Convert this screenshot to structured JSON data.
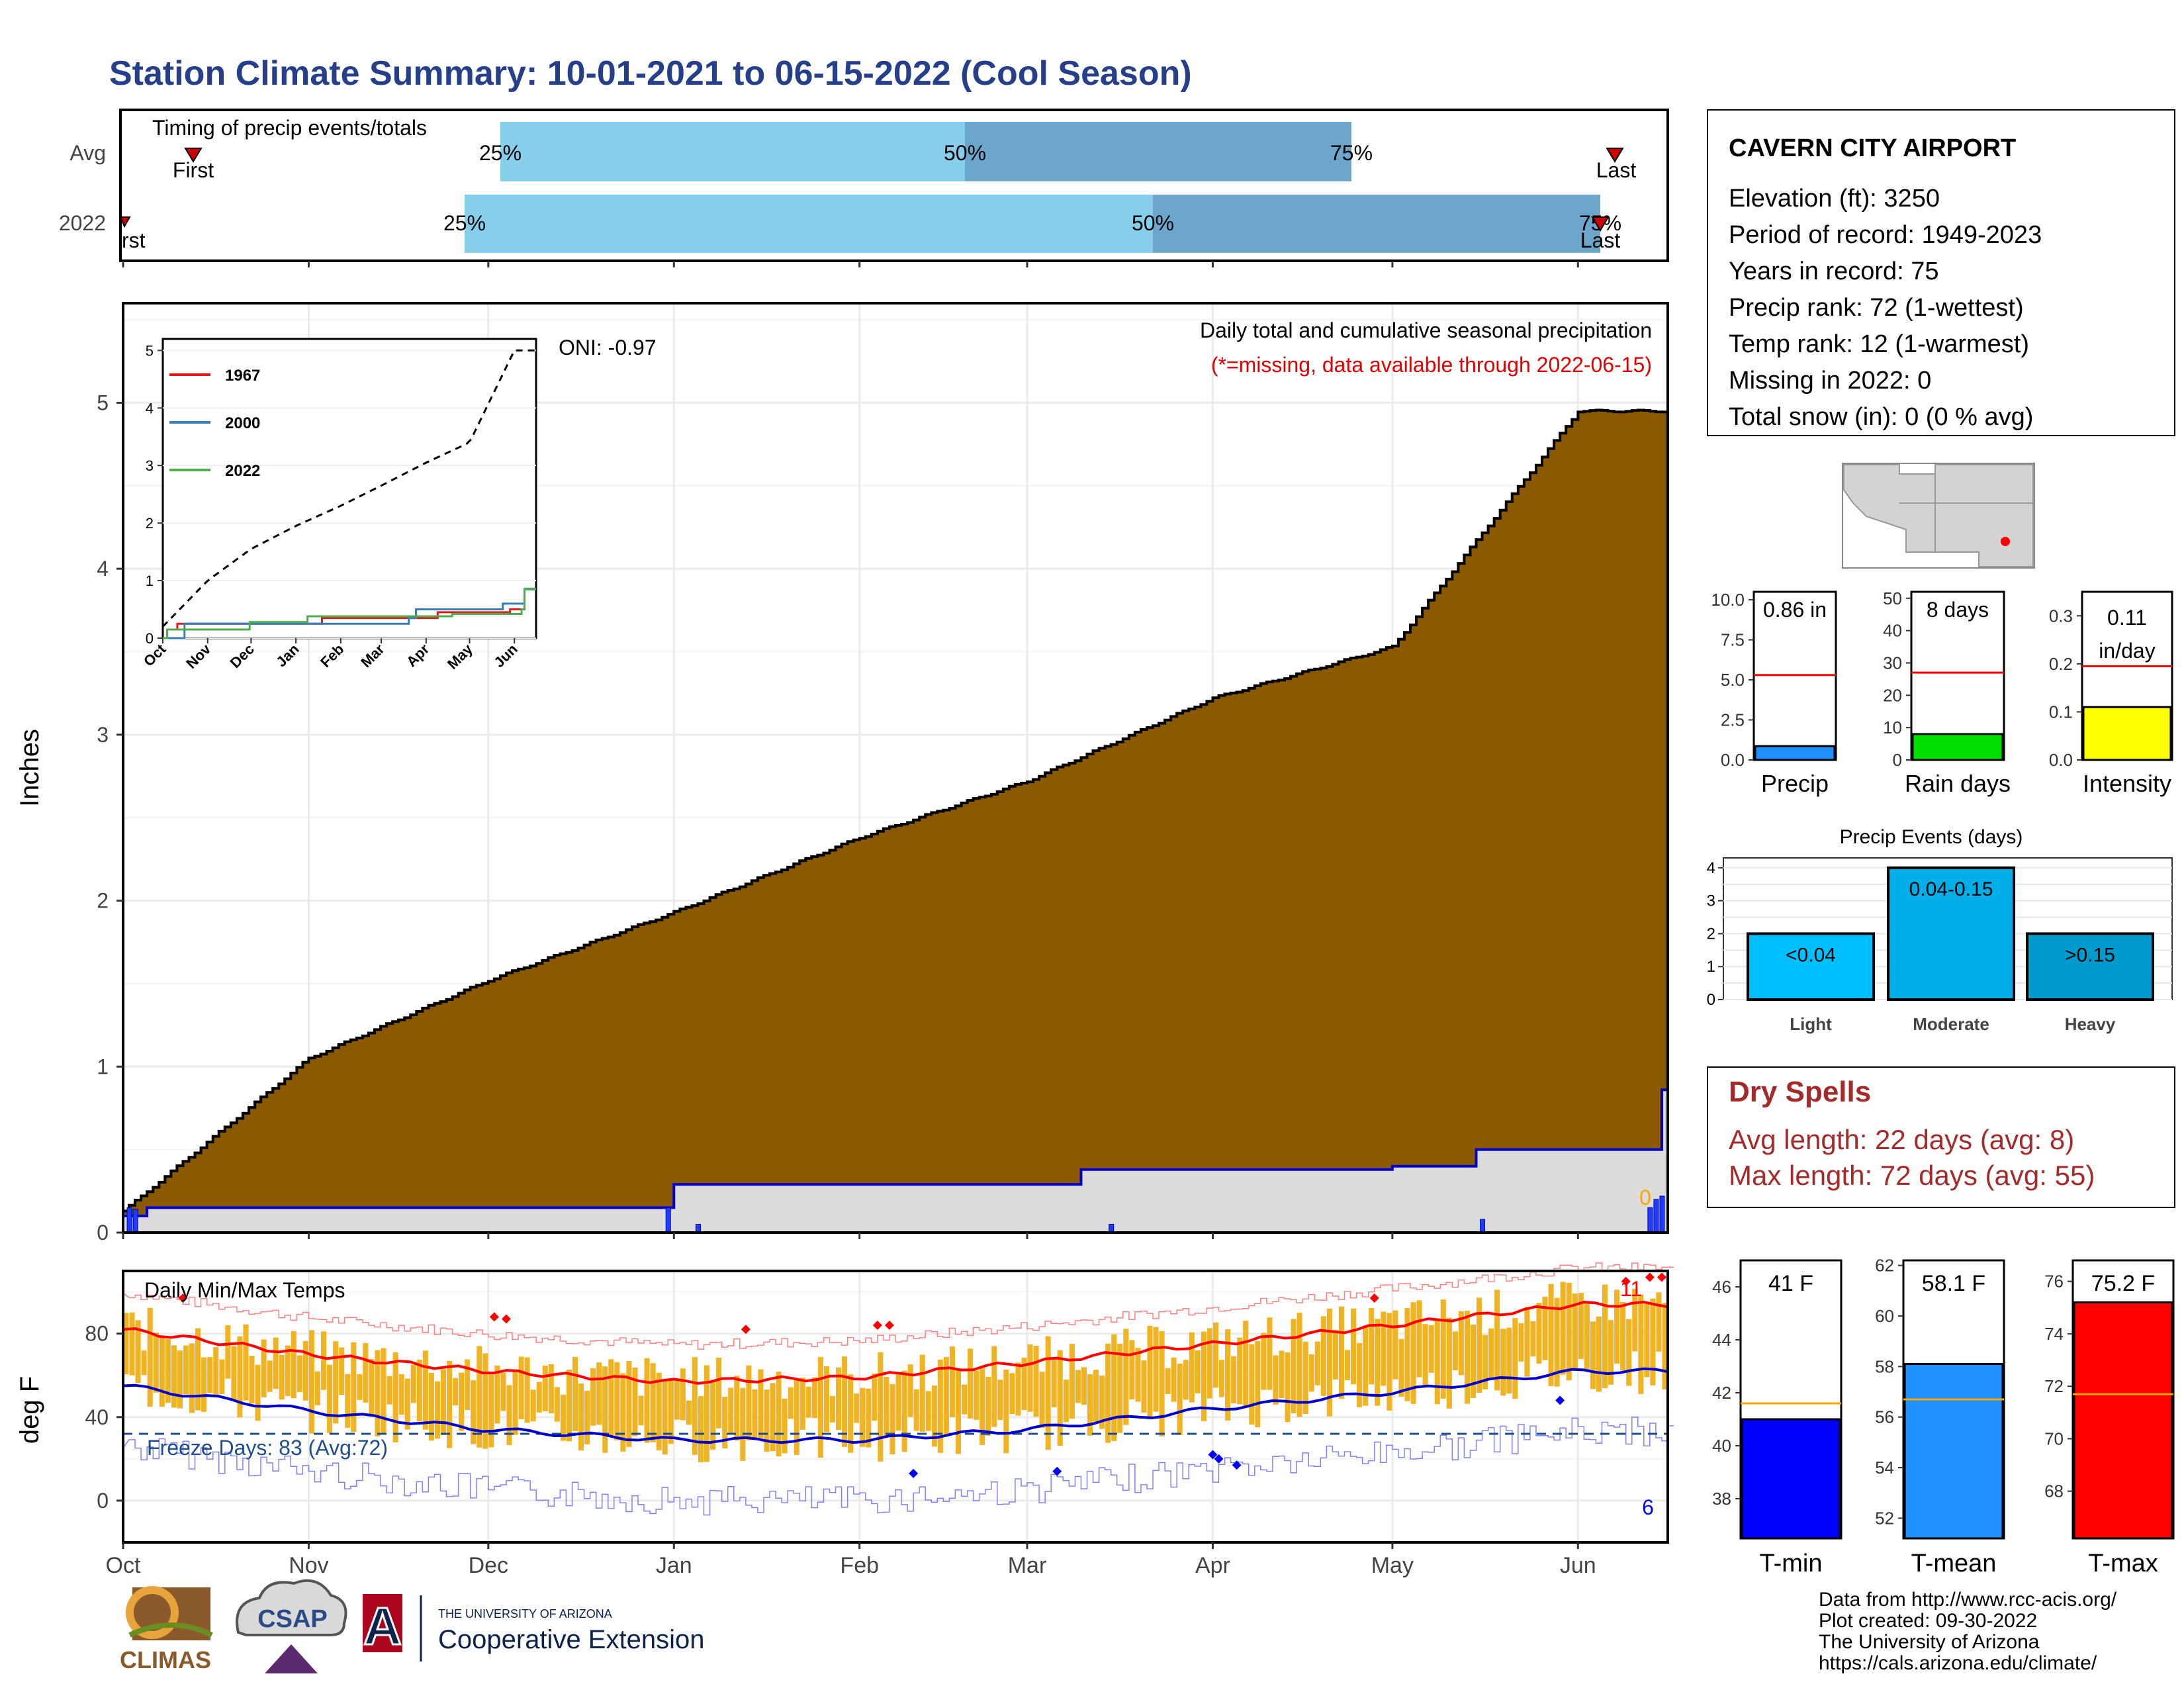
{
  "title": "Station Climate Summary: 10-01-2021 to 06-15-2022 (Cool Season)",
  "timing": {
    "label": "Timing of precip events/totals",
    "rows": [
      "Avg",
      "2022"
    ],
    "avg": {
      "first": "First",
      "last": "Last",
      "p25": "25%",
      "p50": "50%",
      "p75": "75%"
    },
    "y2022": {
      "first": "First",
      "last": "Last",
      "p25": "25%",
      "p50": "50%",
      "p75": "75%"
    }
  },
  "station": {
    "name": "CAVERN CITY AIRPORT",
    "lines": [
      "Elevation (ft): 3250",
      "Period of record: 1949-2023",
      "Years in record: 75",
      "Precip rank: 72 (1-wettest)",
      "Temp rank: 12 (1-warmest)",
      "Missing in 2022: 0",
      "Total snow (in): 0 (0 % avg)"
    ]
  },
  "precip_panel": {
    "ylabel": "Inches",
    "yticks": [
      "0",
      "1",
      "2",
      "3",
      "4",
      "5"
    ],
    "note1": "Daily total and cumulative seasonal precipitation",
    "note2": "(*=missing, data available through 2022-06-15)",
    "oni": "ONI: -0.97",
    "zero_label": "0"
  },
  "inset": {
    "yticks": [
      "0",
      "1",
      "2",
      "3",
      "4",
      "5"
    ],
    "xticks": [
      "Oct",
      "Nov",
      "Dec",
      "Jan",
      "Feb",
      "Mar",
      "Apr",
      "May",
      "Jun"
    ],
    "legend": [
      "1967",
      "2000",
      "2022"
    ],
    "colors": {
      "1967": "#e41a1c",
      "2000": "#377eb8",
      "2022": "#4daf4a"
    }
  },
  "temp_panel": {
    "label": "Daily Min/Max Temps",
    "ylabel": "deg F",
    "yticks": [
      "0",
      "40",
      "80"
    ],
    "freeze_label": "Freeze Days: 83 (Avg:72)",
    "record_high_count": "11",
    "record_low_count": "6"
  },
  "months": [
    "Oct",
    "Nov",
    "Dec",
    "Jan",
    "Feb",
    "Mar",
    "Apr",
    "May",
    "Jun"
  ],
  "mini_bars": {
    "precip": {
      "label": "Precip",
      "value_text": "0.86 in",
      "yticks": [
        "0.0",
        "2.5",
        "5.0",
        "7.5",
        "10.0"
      ],
      "value": 0.86,
      "avg": 5.3,
      "max": 10.5,
      "color": "#1e90ff"
    },
    "raindays": {
      "label": "Rain days",
      "value_text": "8 days",
      "yticks": [
        "0",
        "10",
        "20",
        "30",
        "40",
        "50"
      ],
      "value": 8,
      "avg": 27,
      "max": 52,
      "color": "#00e000"
    },
    "intensity": {
      "label": "Intensity",
      "value_text1": "0.11",
      "value_text2": "in/day",
      "yticks": [
        "0.0",
        "0.1",
        "0.2",
        "0.3"
      ],
      "value": 0.11,
      "avg": 0.195,
      "max": 0.35,
      "color": "#ffff00"
    }
  },
  "events": {
    "title": "Precip Events (days)",
    "categories": [
      "Light",
      "Moderate",
      "Heavy"
    ],
    "labels": [
      "<0.04",
      "0.04-0.15",
      ">0.15"
    ],
    "values": [
      2,
      4,
      2
    ],
    "yticks": [
      "0",
      "1",
      "2",
      "3",
      "4"
    ],
    "colors": [
      "#00bfff",
      "#00aee8",
      "#009acd"
    ]
  },
  "dry": {
    "title": "Dry Spells",
    "line1": "Avg length: 22 days (avg: 8)",
    "line2": "Max length: 72 days (avg: 55)"
  },
  "temp_bars": {
    "tmin": {
      "label": "T-min",
      "value_text": "41 F",
      "yticks": [
        "38",
        "40",
        "42",
        "44",
        "46"
      ],
      "value": 41,
      "avg": 41.6,
      "min": 36.5,
      "max": 47,
      "color": "#0000ff"
    },
    "tmean": {
      "label": "T-mean",
      "value_text": "58.1 F",
      "yticks": [
        "52",
        "54",
        "56",
        "58",
        "60",
        "62"
      ],
      "value": 58.1,
      "avg": 56.7,
      "min": 51.2,
      "max": 62.2,
      "color": "#1e90ff"
    },
    "tmax": {
      "label": "T-max",
      "value_text": "75.2 F",
      "yticks": [
        "68",
        "70",
        "72",
        "74",
        "76"
      ],
      "value": 75.2,
      "avg": 71.7,
      "min": 66.2,
      "max": 76.8,
      "color": "#ff0000"
    }
  },
  "footer": {
    "lines": [
      "Data from http://www.rcc-acis.org/",
      "Plot created: 09-30-2022",
      "The University of Arizona",
      "https://cals.arizona.edu/climate/"
    ]
  },
  "logos": {
    "climas": "CLIMAS",
    "csap": "CSAP",
    "ua_small": "THE UNIVERSITY OF ARIZONA",
    "ua_big": "Cooperative Extension",
    "ua_letter": "A"
  },
  "chart_data": [
    {
      "type": "area",
      "title": "Daily total and cumulative seasonal precipitation",
      "ylabel": "Inches",
      "ylim": [
        0,
        5.6
      ],
      "x": [
        "Oct",
        "Nov",
        "Dec",
        "Jan",
        "Feb",
        "Mar",
        "Apr",
        "May",
        "Jun"
      ],
      "series": [
        {
          "name": "average cumulative",
          "values": [
            0.13,
            1.05,
            1.52,
            1.93,
            2.38,
            2.72,
            3.22,
            3.53,
            4.95
          ]
        },
        {
          "name": "2022 cumulative",
          "values": [
            0.15,
            0.15,
            0.28,
            0.38,
            0.4,
            0.42,
            0.5,
            0.5,
            0.86
          ]
        }
      ]
    },
    {
      "type": "line",
      "title": "Daily Min/Max Temps",
      "ylabel": "deg F",
      "ylim": [
        -20,
        110
      ],
      "x": [
        "Oct",
        "Nov",
        "Dec",
        "Jan",
        "Feb",
        "Mar",
        "Apr",
        "May",
        "Jun"
      ],
      "series": [
        {
          "name": "avg max",
          "values": [
            82,
            70,
            62,
            57,
            59,
            66,
            75,
            84,
            94
          ]
        },
        {
          "name": "avg min",
          "values": [
            55,
            43,
            34,
            29,
            29,
            34,
            44,
            52,
            62
          ]
        }
      ]
    }
  ]
}
